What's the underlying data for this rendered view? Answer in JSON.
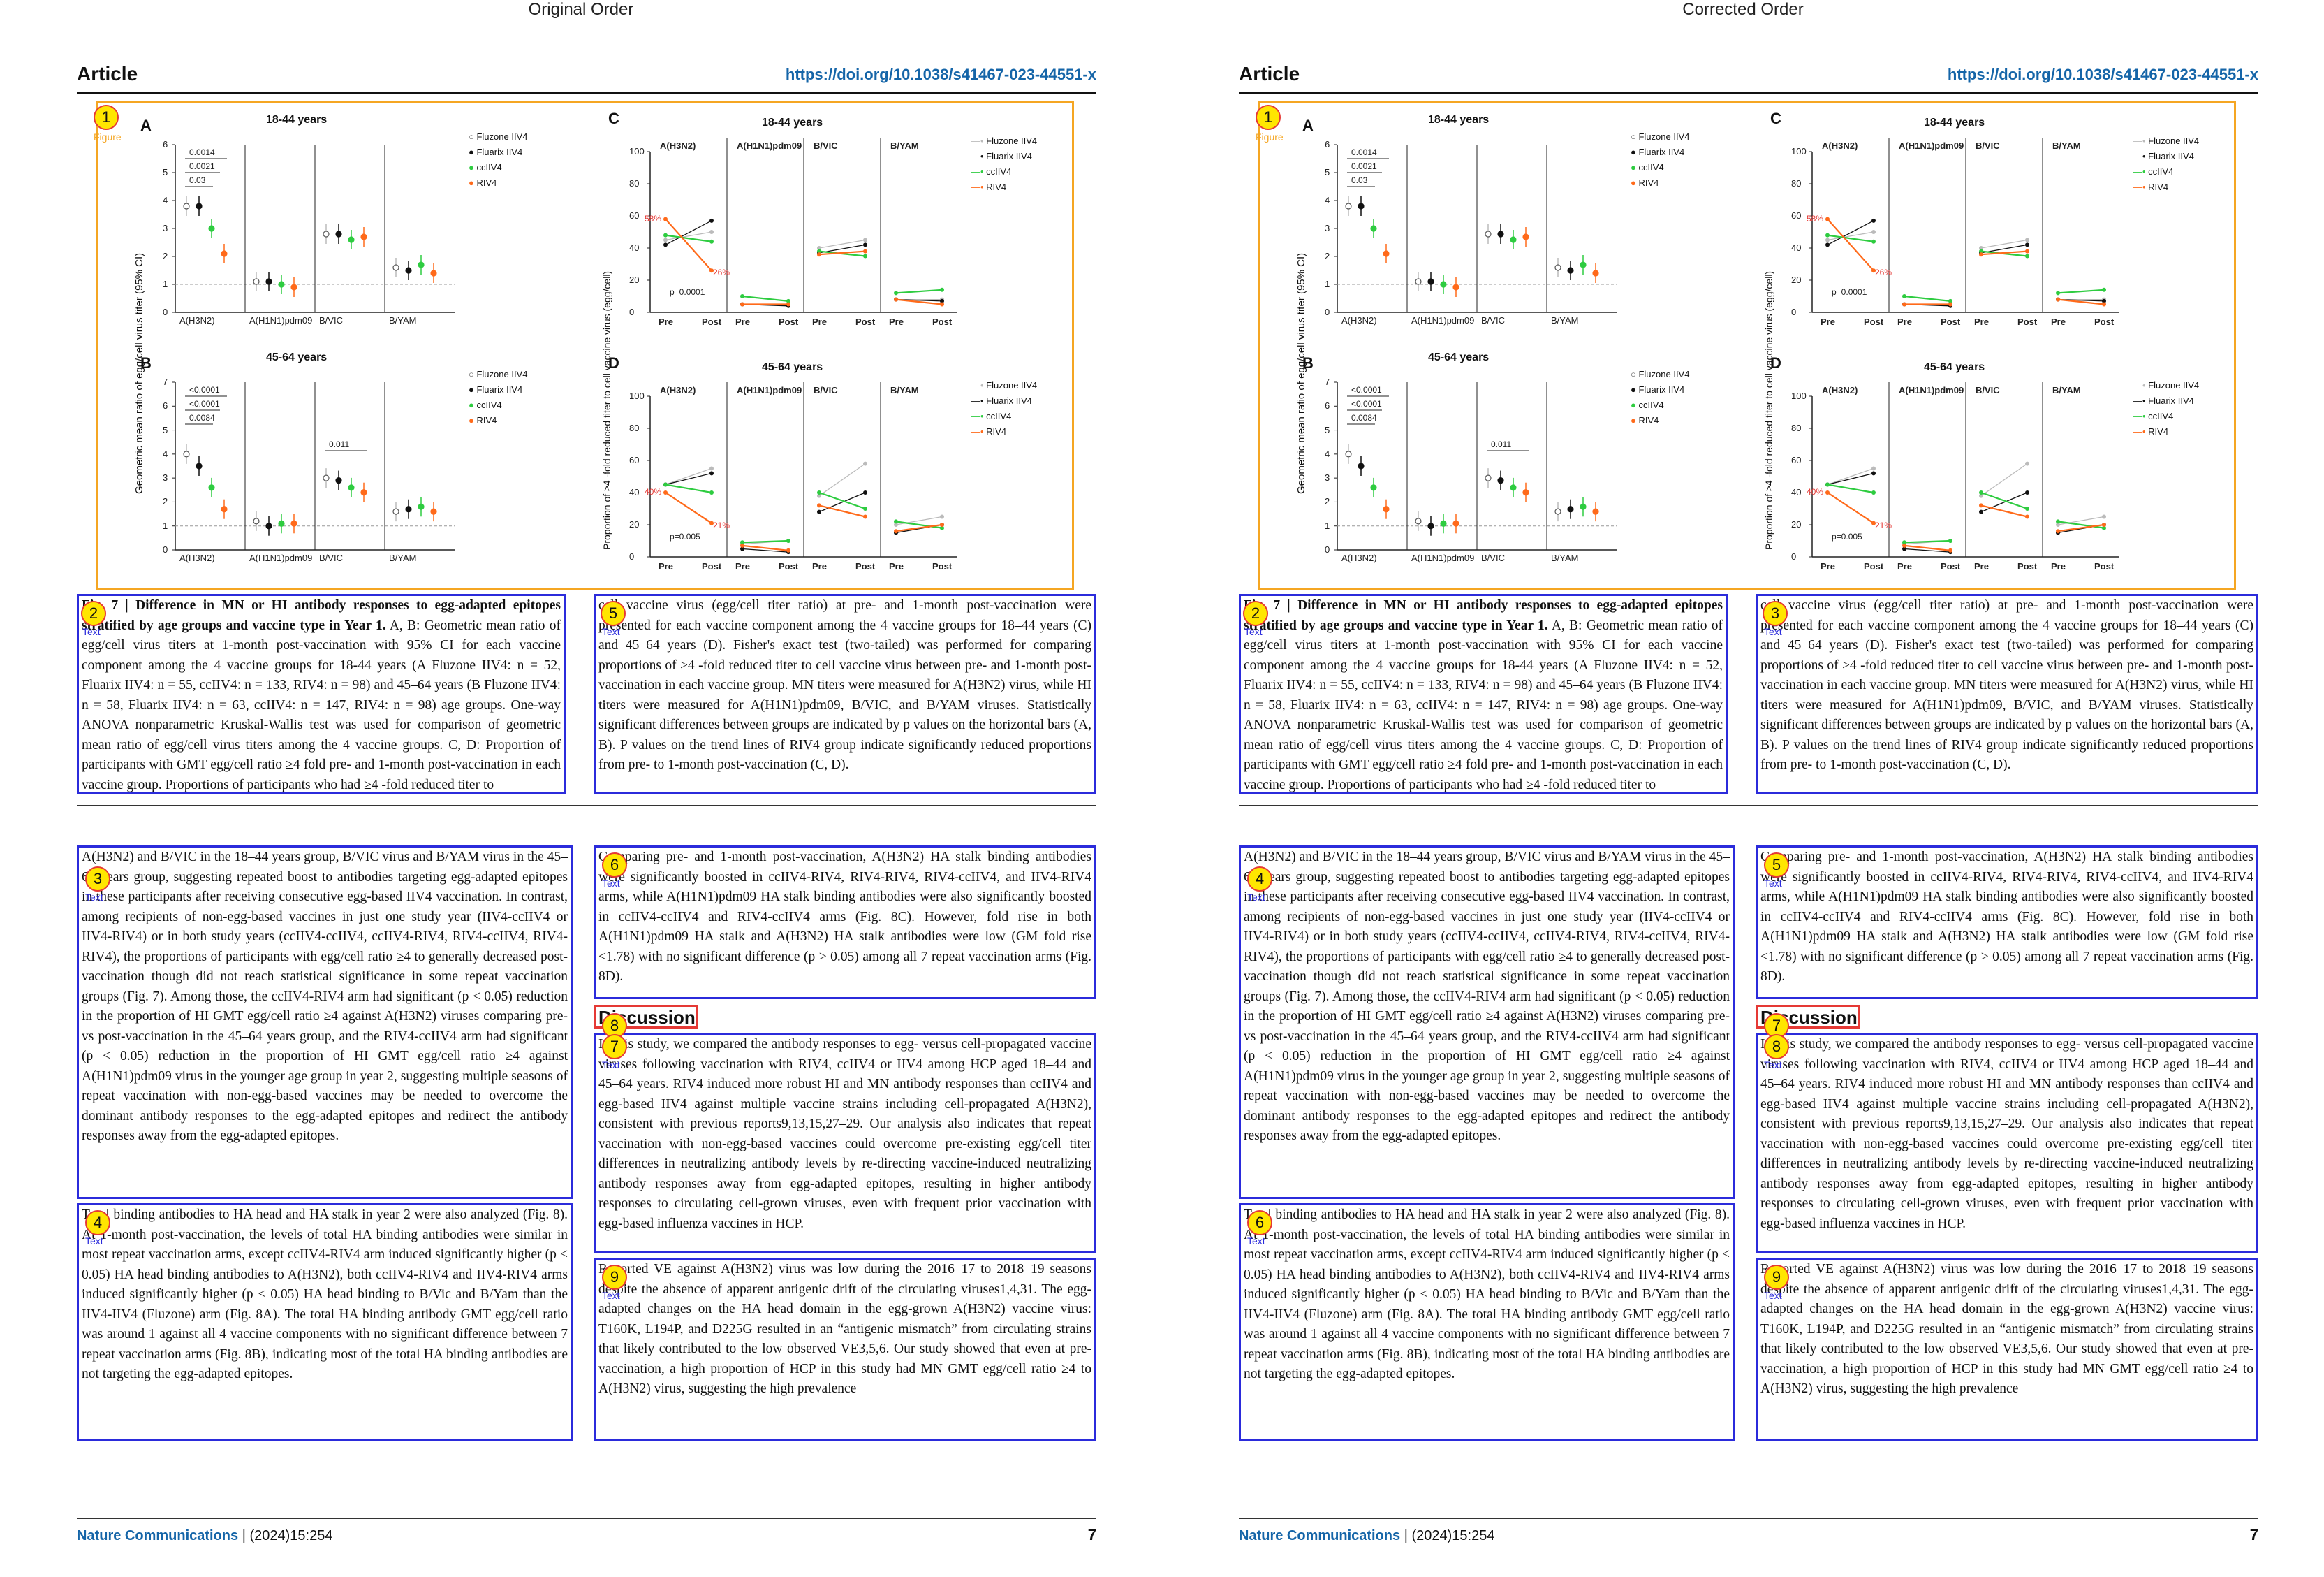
{
  "titles": {
    "left": "Original Order",
    "right": "Corrected Order"
  },
  "header": {
    "article": "Article",
    "doi": "https://doi.org/10.1038/s41467-023-44551-x"
  },
  "footer": {
    "journal": "Nature Communications",
    "citation": " | (2024)15:254",
    "page": "7"
  },
  "tags": {
    "figure": "Figure",
    "text": "Text"
  },
  "figure": {
    "A": {
      "letter": "A",
      "title": "18-44 years",
      "bracket_labels": [
        "0.0014",
        "0.0021",
        "0.03"
      ]
    },
    "B": {
      "letter": "B",
      "title": "45-64 years",
      "bracket_labels": [
        "<0.0001",
        "<0.0001",
        "0.0084",
        "0.011"
      ]
    },
    "C": {
      "letter": "C",
      "title": "18-44 years",
      "pct_hi": "58%",
      "pct_lo": "26%",
      "pvalue": "p=0.0001"
    },
    "D": {
      "letter": "D",
      "title": "45-64 years",
      "pct_hi": "40%",
      "pct_lo": "21%",
      "pvalue": "p=0.005"
    },
    "ylabel_left": "Geometric mean ratio of egg/cell virus titer (95% CI)",
    "ylabel_right": "Proportion of ≥4 -fold reduced titer to cell vaccine virus (egg/cell)",
    "groups": [
      "A(H3N2)",
      "A(H1N1)pdm09",
      "B/VIC",
      "B/YAM"
    ],
    "prepost": [
      "Pre",
      "Post"
    ],
    "legend": [
      "Fluzone IIV4",
      "Fluarix IIV4",
      "ccIIV4",
      "RIV4"
    ]
  },
  "chart_data": [
    {
      "type": "scatter",
      "title": "18-44 years",
      "ylim": [
        0,
        6
      ],
      "categories": [
        "A(H3N2)",
        "A(H1N1)pdm09",
        "B/VIC",
        "B/YAM"
      ],
      "series": [
        {
          "name": "Fluzone IIV4",
          "values": [
            3.8,
            1.1,
            2.8,
            1.6
          ]
        },
        {
          "name": "Fluarix IIV4",
          "values": [
            3.8,
            1.1,
            2.8,
            1.5
          ]
        },
        {
          "name": "ccIIV4",
          "values": [
            3.0,
            1.0,
            2.6,
            1.7
          ]
        },
        {
          "name": "RIV4",
          "values": [
            2.1,
            0.9,
            2.7,
            1.4
          ]
        }
      ]
    },
    {
      "type": "scatter",
      "title": "45-64 years",
      "ylim": [
        0,
        7
      ],
      "categories": [
        "A(H3N2)",
        "A(H1N1)pdm09",
        "B/VIC",
        "B/YAM"
      ],
      "series": [
        {
          "name": "Fluzone IIV4",
          "values": [
            4.0,
            1.2,
            3.0,
            1.6
          ]
        },
        {
          "name": "Fluarix IIV4",
          "values": [
            3.5,
            1.0,
            2.9,
            1.7
          ]
        },
        {
          "name": "ccIIV4",
          "values": [
            2.6,
            1.1,
            2.6,
            1.8
          ]
        },
        {
          "name": "RIV4",
          "values": [
            1.7,
            1.1,
            2.4,
            1.6
          ]
        }
      ]
    },
    {
      "type": "line",
      "title": "18-44 years",
      "ylim": [
        0,
        100
      ],
      "x": [
        "Pre",
        "Post"
      ],
      "groups": [
        "A(H3N2)",
        "A(H1N1)pdm09",
        "B/VIC",
        "B/YAM"
      ],
      "series": [
        {
          "name": "Fluzone IIV4",
          "values": [
            [
              45,
              50
            ],
            [
              5,
              5
            ],
            [
              40,
              45
            ],
            [
              8,
              8
            ]
          ]
        },
        {
          "name": "Fluarix IIV4",
          "values": [
            [
              42,
              57
            ],
            [
              5,
              4
            ],
            [
              37,
              42
            ],
            [
              8,
              7
            ]
          ]
        },
        {
          "name": "ccIIV4",
          "values": [
            [
              48,
              44
            ],
            [
              10,
              7
            ],
            [
              38,
              35
            ],
            [
              12,
              14
            ]
          ]
        },
        {
          "name": "RIV4",
          "values": [
            [
              58,
              26
            ],
            [
              5,
              5
            ],
            [
              36,
              38
            ],
            [
              8,
              5
            ]
          ]
        }
      ]
    },
    {
      "type": "line",
      "title": "45-64 years",
      "ylim": [
        0,
        100
      ],
      "x": [
        "Pre",
        "Post"
      ],
      "groups": [
        "A(H3N2)",
        "A(H1N1)pdm09",
        "B/VIC",
        "B/YAM"
      ],
      "series": [
        {
          "name": "Fluzone IIV4",
          "values": [
            [
              45,
              55
            ],
            [
              8,
              10
            ],
            [
              38,
              58
            ],
            [
              20,
              25
            ]
          ]
        },
        {
          "name": "Fluarix IIV4",
          "values": [
            [
              45,
              52
            ],
            [
              5,
              3
            ],
            [
              28,
              40
            ],
            [
              15,
              20
            ]
          ]
        },
        {
          "name": "ccIIV4",
          "values": [
            [
              45,
              40
            ],
            [
              9,
              10
            ],
            [
              40,
              30
            ],
            [
              22,
              18
            ]
          ]
        },
        {
          "name": "RIV4",
          "values": [
            [
              40,
              21
            ],
            [
              7,
              4
            ],
            [
              32,
              25
            ],
            [
              16,
              20
            ]
          ]
        }
      ]
    }
  ],
  "text": {
    "b2_lead": "Fig. 7 | Difference in MN or HI antibody responses to egg-adapted epitopes stratified by age groups and vaccine type in Year 1.",
    "b2_body": "A, B: Geometric mean ratio of egg/cell virus titers at 1-month post-vaccination with 95% CI for each vaccine component among the 4 vaccine groups for 18-44 years (A Fluzone IIV4: n = 52, Fluarix IIV4: n = 55, ccIIV4: n = 133, RIV4: n = 98) and 45–64 years (B Fluzone IIV4: n = 58, Fluarix IIV4: n = 63, ccIIV4: n = 147, RIV4: n = 98) age groups. One-way ANOVA nonparametric Kruskal-Wallis test was used for comparison of geometric mean ratio of egg/cell virus titers among the 4 vaccine groups. C, D: Proportion of participants with GMT egg/cell ratio ≥4 fold pre- and 1-month post-vaccination in each vaccine group. Proportions of participants who had ≥4 -fold reduced titer to",
    "b5": "cell vaccine virus (egg/cell titer ratio) at pre- and 1-month post-vaccination were presented for each vaccine component among the 4 vaccine groups for 18–44 years (C) and 45–64 years (D). Fisher's exact test (two-tailed) was performed for comparing proportions of ≥4 -fold reduced titer to cell vaccine virus between pre- and 1-month post-vaccination in each vaccine group. MN titers were measured for A(H3N2) virus, while HI titers were measured for A(H1N1)pdm09, B/VIC, and B/YAM viruses. Statistically significant differences between groups are indicated by p values on the horizontal bars (A, B). P values on the trend lines of RIV4 group indicate significantly reduced proportions from pre- to 1-month post-vaccination (C, D).",
    "b3": "A(H3N2) and B/VIC in the 18–44 years group, B/VIC virus and B/YAM virus in the 45–64 years group, suggesting repeated boost to antibodies targeting egg-adapted epitopes in these participants after receiving consecutive egg-based IIV4 vaccination. In contrast, among recipients of non-egg-based vaccines in just one study year (IIV4-ccIIV4 or IIV4-RIV4) or in both study years (ccIIV4-ccIIV4, ccIIV4-RIV4, RIV4-ccIIV4, RIV4-RIV4), the proportions of participants with egg/cell ratio ≥4 to generally decreased post-vaccination though did not reach statistical significance in some repeat vaccination groups (Fig. 7). Among those, the ccIIV4-RIV4 arm had significant (p < 0.05) reduction in the proportion of HI GMT egg/cell ratio ≥4 against A(H3N2) viruses comparing pre- vs post-vaccination in the 45–64 years group, and the RIV4-ccIIV4 arm had significant (p < 0.05) reduction in the proportion of HI GMT egg/cell ratio ≥4 against A(H1N1)pdm09 virus in the younger age group in year 2, suggesting multiple seasons of repeat vaccination with non-egg-based vaccines may be needed to overcome the dominant antibody responses to the egg-adapted epitopes and redirect the antibody responses away from the egg-adapted epitopes.",
    "b4": "Total binding antibodies to HA head and HA stalk in year 2 were also analyzed (Fig. 8). At 1-month post-vaccination, the levels of total HA binding antibodies were similar in most repeat vaccination arms, except ccIIV4-RIV4 arm induced significantly higher (p < 0.05) HA head binding antibodies to A(H3N2), both ccIIV4-RIV4 and IIV4-RIV4 arms induced significantly higher (p < 0.05) HA head binding to B/Vic and B/Yam than the IIV4-IIV4 (Fluzone) arm (Fig. 8A). The total HA binding antibody GMT egg/cell ratio was around 1 against all 4 vaccine components with no significant difference between 7 repeat vaccination arms (Fig. 8B), indicating most of the total HA binding antibodies are not targeting the egg-adapted epitopes.",
    "b6": "Comparing pre- and 1-month post-vaccination, A(H3N2) HA stalk binding antibodies were significantly boosted in ccIIV4-RIV4, RIV4-RIV4, RIV4-ccIIV4, and IIV4-RIV4 arms, while A(H1N1)pdm09 HA stalk binding antibodies were also significantly boosted in ccIIV4-ccIIV4 and RIV4-ccIIV4 arms (Fig. 8C). However, fold rise in both A(H1N1)pdm09 HA stalk and A(H3N2) HA stalk antibodies were low (GM fold rise <1.78) with no significant difference (p > 0.05) among all 7 repeat vaccination arms (Fig. 8D).",
    "heading": "Discussion",
    "b8": "In this study, we compared the antibody responses to egg- versus cell-propagated vaccine viruses following vaccination with RIV4, ccIIV4 or IIV4 among HCP aged 18–44 and 45–64 years. RIV4 induced more robust HI and MN antibody responses than ccIIV4 and egg-based IIV4 against multiple vaccine strains including cell-propagated A(H3N2), consistent with previous reports9,13,15,27–29. Our analysis also indicates that repeat vaccination with non-egg-based vaccines could overcome pre-existing egg/cell titer differences in neutralizing antibody levels by re-directing vaccine-induced neutralizing antibody responses away from egg-adapted epitopes, resulting in higher antibody responses to circulating cell-grown viruses, even with frequent prior vaccination with egg-based influenza vaccines in HCP.",
    "b9": "Reported VE against A(H3N2) virus was low during the 2016–17 to 2018–19 seasons despite the absence of apparent antigenic drift of the circulating viruses1,4,31. The egg-adapted changes on the HA head domain in the egg-grown A(H3N2) vaccine virus: T160K, L194P, and D225G resulted in an “antigenic mismatch” from circulating strains that likely contributed to the low observed VE3,5,6. Our study showed that even at pre-vaccination, a high proportion of HCP in this study had MN GMT egg/cell ratio ≥4 to A(H3N2) virus, suggesting the high prevalence"
  },
  "markers": {
    "left": {
      "figure": "1",
      "caption_a": "2",
      "col1_top": "3",
      "col1_bottom": "4",
      "caption_b": "5",
      "col2_top": "6",
      "heading": "8",
      "heading_alt": "7",
      "col2_bottom": "9"
    },
    "right": {
      "figure": "1",
      "caption_a": "2",
      "caption_b": "3",
      "col1_top": "4",
      "col2_top": "5",
      "col1_bottom": "6",
      "heading": "7",
      "heading_alt": "8",
      "col2_bottom": "9"
    }
  },
  "colors": {
    "fluzone": "#bbbbbb",
    "fluarix": "#111111",
    "cciiv4": "#2ecc40",
    "riv4": "#ff6a1a",
    "figure_box": "#f5a623",
    "text_box": "#2b2bdb",
    "heading_box": "#e53935",
    "marker_fill": "#ffe600"
  }
}
